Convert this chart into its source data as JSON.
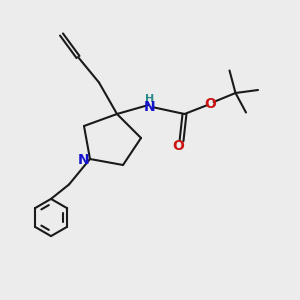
{
  "bg_color": "#ececec",
  "bond_color": "#1a1a1a",
  "N_color": "#1414cc",
  "O_color": "#cc1414",
  "NH_color": "#2a8a8a",
  "linewidth": 1.5,
  "figsize": [
    3.0,
    3.0
  ],
  "dpi": 100,
  "xlim": [
    0,
    10
  ],
  "ylim": [
    0,
    10
  ]
}
